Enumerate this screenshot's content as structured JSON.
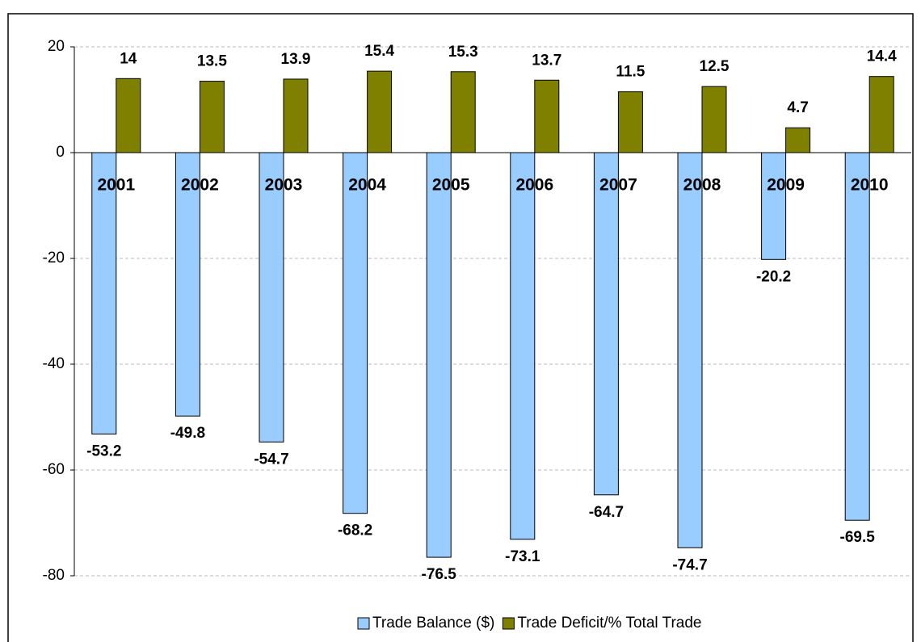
{
  "chart_data": {
    "type": "bar",
    "categories": [
      "2001",
      "2002",
      "2003",
      "2004",
      "2005",
      "2006",
      "2007",
      "2008",
      "2009",
      "2010"
    ],
    "series": [
      {
        "name": "Trade Balance ($)",
        "color": "#99ccff",
        "values": [
          -53.2,
          -49.8,
          -54.7,
          -68.2,
          -76.5,
          -73.1,
          -64.7,
          -74.7,
          -20.2,
          -69.5
        ]
      },
      {
        "name": "Trade Deficit/% Total Trade",
        "color": "#808000",
        "values": [
          14,
          13.5,
          13.9,
          15.4,
          15.3,
          13.7,
          11.5,
          12.5,
          4.7,
          14.4
        ]
      }
    ],
    "ylim": [
      -80,
      20
    ],
    "yticks": [
      -80,
      -60,
      -40,
      -20,
      0,
      20
    ],
    "grid": true,
    "legend": "bottom"
  }
}
